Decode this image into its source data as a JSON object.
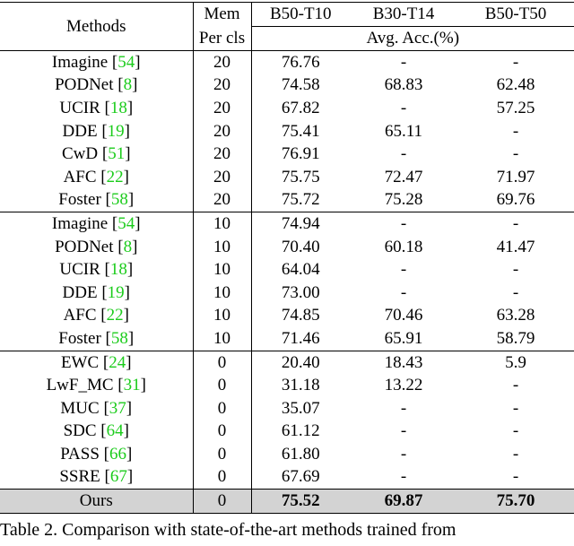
{
  "table": {
    "header": {
      "methods": "Methods",
      "mem": [
        "Mem",
        "Per cls"
      ],
      "columns": [
        "B50-T10",
        "B30-T14",
        "B50-T50"
      ],
      "metric": "Avg. Acc.(%)"
    },
    "groups": [
      [
        {
          "method": "Imagine",
          "cite": "54",
          "mem": "20",
          "results": [
            "76.76",
            "-",
            "-"
          ]
        },
        {
          "method": "PODNet",
          "cite": "8",
          "mem": "20",
          "results": [
            "74.58",
            "68.83",
            "62.48"
          ]
        },
        {
          "method": "UCIR",
          "cite": "18",
          "mem": "20",
          "results": [
            "67.82",
            "-",
            "57.25"
          ]
        },
        {
          "method": "DDE",
          "cite": "19",
          "mem": "20",
          "results": [
            "75.41",
            "65.11",
            "-"
          ]
        },
        {
          "method": "CwD",
          "cite": "51",
          "mem": "20",
          "results": [
            "76.91",
            "-",
            "-"
          ]
        },
        {
          "method": "AFC",
          "cite": "22",
          "mem": "20",
          "results": [
            "75.75",
            "72.47",
            "71.97"
          ]
        },
        {
          "method": "Foster",
          "cite": "58",
          "mem": "20",
          "results": [
            "75.72",
            "75.28",
            "69.76"
          ]
        }
      ],
      [
        {
          "method": "Imagine",
          "cite": "54",
          "mem": "10",
          "results": [
            "74.94",
            "-",
            "-"
          ]
        },
        {
          "method": "PODNet",
          "cite": "8",
          "mem": "10",
          "results": [
            "70.40",
            "60.18",
            "41.47"
          ]
        },
        {
          "method": "UCIR",
          "cite": "18",
          "mem": "10",
          "results": [
            "64.04",
            "-",
            "-"
          ]
        },
        {
          "method": "DDE",
          "cite": "19",
          "mem": "10",
          "results": [
            "73.00",
            "-",
            "-"
          ]
        },
        {
          "method": "AFC",
          "cite": "22",
          "mem": "10",
          "results": [
            "74.85",
            "70.46",
            "63.28"
          ]
        },
        {
          "method": "Foster",
          "cite": "58",
          "mem": "10",
          "results": [
            "71.46",
            "65.91",
            "58.79"
          ]
        }
      ],
      [
        {
          "method": "EWC",
          "cite": "24",
          "mem": "0",
          "results": [
            "20.40",
            "18.43",
            "5.9"
          ]
        },
        {
          "method": "LwF_MC",
          "cite": "31",
          "mem": "0",
          "results": [
            "31.18",
            "13.22",
            "-"
          ]
        },
        {
          "method": "MUC",
          "cite": "37",
          "mem": "0",
          "results": [
            "35.07",
            "-",
            "-"
          ]
        },
        {
          "method": "SDC",
          "cite": "64",
          "mem": "0",
          "results": [
            "61.12",
            "-",
            "-"
          ]
        },
        {
          "method": "PASS",
          "cite": "66",
          "mem": "0",
          "results": [
            "61.80",
            "-",
            "-"
          ]
        },
        {
          "method": "SSRE",
          "cite": "67",
          "mem": "0",
          "results": [
            "67.69",
            "-",
            "-"
          ]
        }
      ]
    ],
    "ours": {
      "method": "Ours",
      "mem": "0",
      "results": [
        "75.52",
        "69.87",
        "75.70"
      ]
    }
  },
  "caption": "Table 2. Comparison with state-of-the-art methods trained from"
}
